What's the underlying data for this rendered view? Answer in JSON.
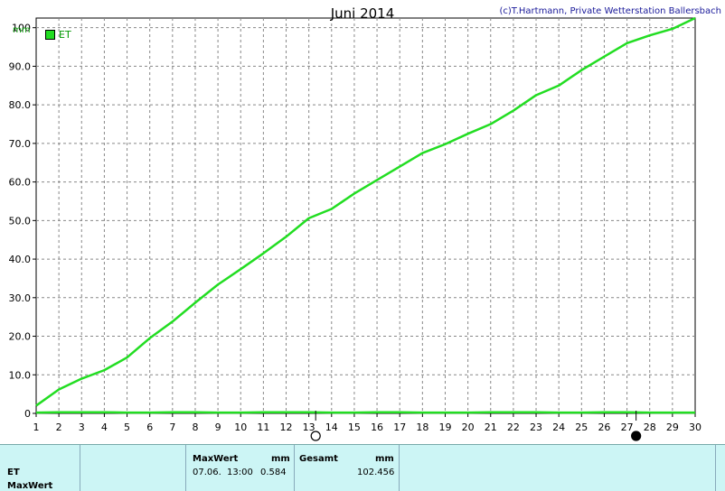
{
  "title": "Juni 2014",
  "credit": "(c)T.Hartmann, Private Wetterstation Ballersbach",
  "unit_label": "mm",
  "legend_label": "ET",
  "colors": {
    "series": "#22dd22",
    "grid": "#888888",
    "table_bg": "#ccf5f5"
  },
  "chart_data": {
    "type": "line",
    "title": "Juni 2014",
    "ylabel": "mm",
    "xlabel": "",
    "ylim": [
      0,
      102.5
    ],
    "yticks": [
      "0",
      "10.0",
      "20.0",
      "30.0",
      "40.0",
      "50.0",
      "60.0",
      "70.0",
      "80.0",
      "90.0",
      "100"
    ],
    "xticks": [
      "1",
      "2",
      "3",
      "4",
      "5",
      "6",
      "7",
      "8",
      "9",
      "10",
      "11",
      "12",
      "13",
      "14",
      "15",
      "16",
      "17",
      "18",
      "19",
      "20",
      "21",
      "22",
      "23",
      "24",
      "25",
      "26",
      "27",
      "28",
      "29",
      "30"
    ],
    "grid": true,
    "legend": "top-left",
    "series": [
      {
        "name": "ET",
        "x": [
          1,
          2,
          3,
          4,
          5,
          6,
          7,
          8,
          9,
          10,
          11,
          12,
          13,
          14,
          15,
          16,
          17,
          18,
          19,
          20,
          21,
          22,
          23,
          24,
          25,
          26,
          27,
          28,
          29,
          30
        ],
        "y": [
          2.0,
          6.2,
          9.0,
          11.2,
          14.5,
          19.5,
          23.8,
          28.7,
          33.4,
          37.4,
          41.5,
          45.8,
          50.6,
          53.0,
          57.0,
          60.5,
          64.0,
          67.5,
          69.8,
          72.5,
          75.0,
          78.5,
          82.5,
          85.0,
          89.0,
          92.5,
          96.0,
          98.0,
          99.7,
          102.5
        ]
      },
      {
        "name": "ET",
        "x": [
          1,
          2,
          3,
          4,
          5,
          6,
          7,
          8,
          9,
          10,
          11,
          12,
          13,
          14,
          15,
          16,
          17,
          18,
          19,
          20,
          21,
          22,
          23,
          24,
          25,
          26,
          27,
          28,
          29,
          30
        ],
        "y": [
          0.2,
          0.3,
          0.3,
          0.3,
          0.2,
          0.2,
          0.3,
          0.3,
          0.2,
          0.2,
          0.3,
          0.3,
          0.3,
          0.2,
          0.2,
          0.3,
          0.3,
          0.2,
          0.2,
          0.2,
          0.3,
          0.3,
          0.3,
          0.2,
          0.2,
          0.3,
          0.3,
          0.2,
          0.2,
          0.2
        ]
      }
    ],
    "markers": [
      {
        "type": "new-moon-hollow",
        "x": 13.3
      },
      {
        "type": "full-moon-filled",
        "x": 27.4
      }
    ]
  },
  "table": {
    "row_label_1": "ET",
    "row_label_2": "MaxWert",
    "maxwert_header": "MaxWert",
    "maxwert_unit": "mm",
    "maxwert_date": "07.06.",
    "maxwert_time": "13:00",
    "maxwert_value": "0.584",
    "gesamt_header": "Gesamt",
    "gesamt_unit": "mm",
    "gesamt_value": "102.456"
  }
}
